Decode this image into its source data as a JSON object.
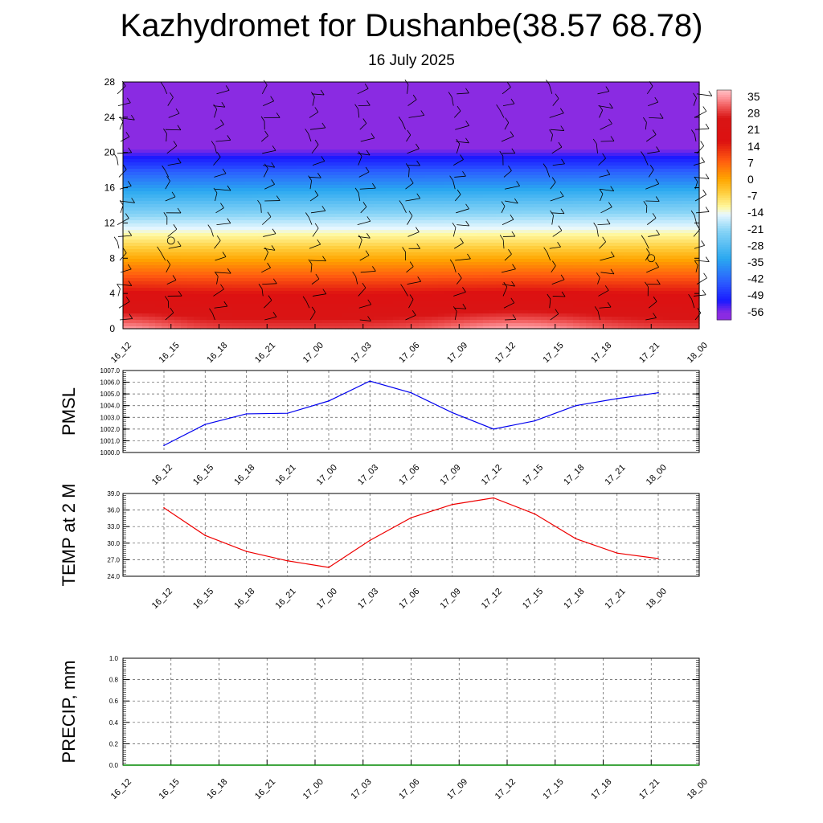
{
  "page": {
    "title": "Kazhydromet for Dushanbe(38.57 68.78)",
    "subtitle": "16 July 2025"
  },
  "chart_data": [
    {
      "type": "heatmap",
      "name": "vertical-cross-section",
      "title": "",
      "x_tick_labels": [
        "16_12",
        "16_15",
        "16_18",
        "16_21",
        "17_00",
        "17_03",
        "17_06",
        "17_09",
        "17_12",
        "17_15",
        "17_18",
        "17_21",
        "18_00"
      ],
      "y_ticks": [
        0,
        4,
        8,
        12,
        16,
        20,
        24,
        28
      ],
      "ylim": [
        0,
        28
      ],
      "colorbar_labels": [
        "35",
        "28",
        "21",
        "14",
        "7",
        "0",
        "-7",
        "-14",
        "-21",
        "-28",
        "-35",
        "-42",
        "-49",
        "-56"
      ],
      "color_range": [
        -60,
        38
      ],
      "colors": {
        "cold": "#8a2be2",
        "freezing": "#1a1aff",
        "cool": "#2aa8f0",
        "mild": "#fff8a0",
        "warm": "#ffa500",
        "hot": "#dd1111",
        "max": "#ffc0c4"
      },
      "wind_barbs": "black",
      "calm_circles": [
        [
          1,
          10
        ],
        [
          11,
          8
        ]
      ]
    },
    {
      "type": "line",
      "name": "pmsl",
      "ylabel": "PMSL",
      "x_tick_labels": [
        "16_12",
        "16_15",
        "16_18",
        "16_21",
        "17_00",
        "17_03",
        "17_06",
        "17_09",
        "17_12",
        "17_15",
        "17_18",
        "17_21",
        "18_00"
      ],
      "y_ticks": [
        "1000.0",
        "1001.0",
        "1002.0",
        "1003.0",
        "1004.0",
        "1005.0",
        "1006.0",
        "1007.0"
      ],
      "ylim": [
        1000,
        1007
      ],
      "grid": true,
      "series": [
        {
          "color": "#0000ee",
          "values": [
            1000.6,
            1002.4,
            1003.3,
            1003.35,
            1004.4,
            1006.1,
            1005.1,
            1003.4,
            1002.0,
            1002.7,
            1004.0,
            1004.6,
            1005.1
          ]
        }
      ]
    },
    {
      "type": "line",
      "name": "temp-2m",
      "ylabel": "TEMP at 2 M",
      "x_tick_labels": [
        "16_12",
        "16_15",
        "16_18",
        "16_21",
        "17_00",
        "17_03",
        "17_06",
        "17_09",
        "17_12",
        "17_15",
        "17_18",
        "17_21",
        "18_00"
      ],
      "y_ticks": [
        "24.0",
        "27.0",
        "30.0",
        "33.0",
        "36.0",
        "39.0"
      ],
      "ylim": [
        24,
        39
      ],
      "grid": true,
      "series": [
        {
          "color": "#ee0000",
          "values": [
            36.4,
            31.4,
            28.5,
            26.8,
            25.6,
            30.5,
            34.6,
            37.0,
            38.2,
            35.3,
            30.8,
            28.2,
            27.2
          ]
        }
      ]
    },
    {
      "type": "line",
      "name": "precip",
      "ylabel": "PRECIP, mm",
      "x_tick_labels": [
        "16_12",
        "16_15",
        "16_18",
        "16_21",
        "17_00",
        "17_03",
        "17_06",
        "17_09",
        "17_12",
        "17_15",
        "17_18",
        "17_21",
        "18_00"
      ],
      "y_ticks": [
        "0.0",
        "0.2",
        "0.4",
        "0.6",
        "0.8",
        "1.0"
      ],
      "ylim": [
        0,
        1
      ],
      "grid": true,
      "series": [
        {
          "color": "#008800",
          "values": [
            0,
            0,
            0,
            0,
            0,
            0,
            0,
            0,
            0,
            0,
            0,
            0,
            0
          ]
        }
      ]
    }
  ]
}
